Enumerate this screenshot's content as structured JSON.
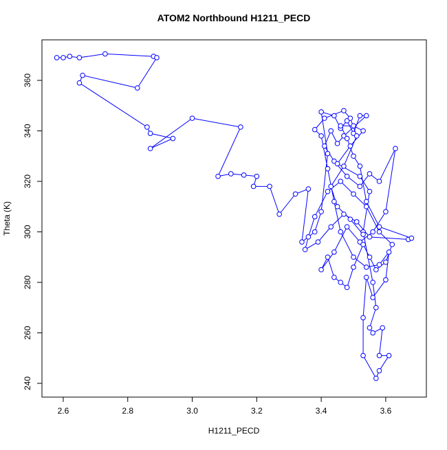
{
  "chart_data": {
    "type": "line",
    "title": "ATOM2 Northbound H1211_PECD",
    "x_label": "H1211_PECD",
    "y_label": "Theta (K)",
    "xlim": [
      2.534,
      3.726
    ],
    "ylim": [
      234.56,
      376.05
    ],
    "xticks": [
      2.6,
      2.8,
      {
        "value": 3,
        "label": "3.0"
      },
      3.2,
      3.4,
      3.6
    ],
    "yticks": [
      240,
      260,
      280,
      300,
      320,
      340,
      360
    ],
    "x": [
      2.58,
      2.6,
      2.62,
      2.65,
      2.73,
      2.88,
      2.89,
      2.83,
      2.66,
      2.65,
      2.86,
      2.87,
      2.94,
      2.87,
      3.0,
      3.15,
      3.08,
      3.12,
      3.16,
      3.2,
      3.19,
      3.24,
      3.27,
      3.32,
      3.36,
      3.34,
      3.38,
      3.4,
      3.42,
      3.4,
      3.44,
      3.46,
      3.48,
      3.5,
      3.52,
      3.54,
      3.47,
      3.45,
      3.43,
      3.41,
      3.44,
      3.48,
      3.52,
      3.55,
      3.58,
      3.63,
      3.6,
      3.56,
      3.52,
      3.48,
      3.44,
      3.4,
      3.42,
      3.44,
      3.46,
      3.48,
      3.5,
      3.53,
      3.55,
      3.57,
      3.6,
      3.62,
      3.58,
      3.54,
      3.5,
      3.46,
      3.42,
      3.38,
      3.36,
      3.35,
      3.39,
      3.43,
      3.47,
      3.51,
      3.55,
      3.67,
      3.68,
      3.58,
      3.54,
      3.52,
      3.5,
      3.48,
      3.46,
      3.5,
      3.53,
      3.49,
      3.45,
      3.52,
      3.55,
      3.53,
      3.56,
      3.57,
      3.55,
      3.56,
      3.59,
      3.58,
      3.61,
      3.58,
      3.57,
      3.53,
      3.53,
      3.54,
      3.56,
      3.6,
      3.61,
      3.58,
      3.54,
      3.5,
      3.46,
      3.44,
      3.42,
      3.4,
      3.38,
      3.41,
      3.47,
      3.49,
      3.51,
      3.47,
      3.43,
      3.45,
      3.49,
      3.53
    ],
    "series": [
      {
        "color": "#0000ff",
        "values": [
          369,
          369,
          369.5,
          369,
          370.5,
          369.5,
          369,
          357,
          362,
          359,
          341.5,
          339,
          337,
          333,
          345,
          341.5,
          322,
          323,
          322.5,
          322,
          318,
          318,
          307,
          315,
          317,
          296,
          300,
          308,
          331,
          347.5,
          346,
          341,
          344,
          339,
          346,
          346,
          338,
          335,
          340,
          334,
          328,
          322,
          318,
          323,
          320,
          333,
          308,
          300,
          296,
          302,
          292,
          285,
          290,
          282,
          280,
          278,
          286,
          295,
          290,
          285,
          288,
          295,
          300,
          310,
          315,
          320,
          316,
          306,
          298,
          293,
          296,
          302,
          307,
          304,
          298,
          297,
          297.5,
          302,
          312,
          326,
          330,
          337,
          342,
          342,
          340,
          334,
          327,
          322,
          316,
          300,
          280,
          270,
          262,
          260,
          262,
          251,
          251,
          245,
          242,
          251,
          266,
          282,
          274,
          281,
          292,
          287,
          286,
          290,
          300,
          312,
          325,
          338,
          340.5,
          345,
          348,
          345,
          338,
          326,
          318,
          310,
          305,
          299
        ]
      }
    ]
  }
}
